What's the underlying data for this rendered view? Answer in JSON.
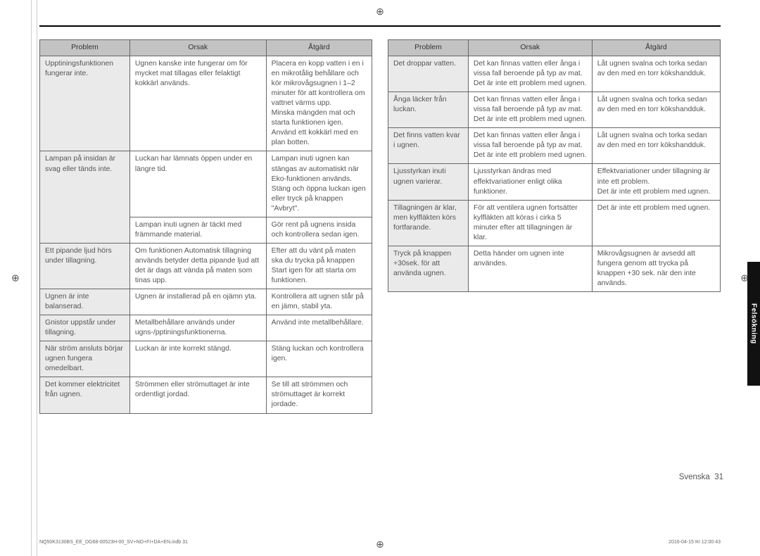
{
  "headers": {
    "col1": "Problem",
    "col2": "Orsak",
    "col3": "Åtgärd"
  },
  "sideTab": "Felsökning",
  "footer": {
    "lang": "Svenska",
    "pageNum": "31",
    "source": "NQ50K3130BS_EE_DG68-00523H-00_SV+NO+FI+DA+EN.indb   31",
    "date": "2016-04-15   ￼ 12:00:43"
  },
  "leftRows": [
    {
      "problem": "Upptiningsfunktionen fungerar inte.",
      "cause": "Ugnen kanske inte fungerar om för mycket mat tillagas eller felaktigt kokkärl används.",
      "action": "Placera en kopp vatten i en i en mikrotålig behållare och kör mikrovågsugnen i 1–2 minuter för att kontrollera om vattnet värms upp.\nMinska mängden mat och starta funktionen igen.\nAnvänd ett kokkärl med en plan botten.",
      "rowspan": 1
    },
    {
      "problem": "Lampan på insidan är svag eller tänds inte.",
      "cause": "Luckan har lämnats öppen under en längre tid.",
      "action": "Lampan inuti ugnen kan stängas av automatiskt när Eko-funktionen används.\nStäng och öppna luckan igen eller tryck på knappen \"Avbryt\".",
      "rowspan": 2
    },
    {
      "problem": "",
      "cause": "Lampan inuti ugnen är täckt med främmande material.",
      "action": "Gör rent på ugnens insida och kontrollera sedan igen."
    },
    {
      "problem": "Ett pipande ljud hörs under tillagning.",
      "cause": "Om funktionen Automatisk tillagning används betyder detta pipande ljud att det är dags att vända på maten som tinas upp.",
      "action": "Efter att du vänt på maten ska du trycka på knappen Start igen för att starta om funktionen.",
      "rowspan": 1
    },
    {
      "problem": "Ugnen är inte balanserad.",
      "cause": "Ugnen är installerad på en ojämn yta.",
      "action": "Kontrollera att ugnen står på en jämn, stabil yta.",
      "rowspan": 1
    },
    {
      "problem": "Gnistor uppstår under tillagning.",
      "cause": "Metallbehållare används under ugns-/pptiningsfunktionerna.",
      "action": "Använd inte metallbehållare.",
      "rowspan": 1
    },
    {
      "problem": "När ström ansluts börjar ugnen fungera omedelbart.",
      "cause": "Luckan är inte korrekt stängd.",
      "action": "Stäng luckan och kontrollera igen.",
      "rowspan": 1
    },
    {
      "problem": "Det kommer elektricitet från ugnen.",
      "cause": "Strömmen eller strömuttaget är inte ordentligt jordad.",
      "action": "Se till att strömmen och strömuttaget är korrekt jordade.",
      "rowspan": 1
    }
  ],
  "rightRows": [
    {
      "problem": "Det droppar vatten.",
      "cause": "Det kan finnas vatten eller ånga i vissa fall beroende på typ av mat.\nDet är inte ett problem med ugnen.",
      "action": "Låt ugnen svalna och torka sedan av den med en torr kökshandduk."
    },
    {
      "problem": "Ånga läcker från luckan.",
      "cause": "Det kan finnas vatten eller ånga i vissa fall beroende på typ av mat.\nDet är inte ett problem med ugnen.",
      "action": "Låt ugnen svalna och torka sedan av den med en torr kökshandduk."
    },
    {
      "problem": "Det finns vatten kvar i ugnen.",
      "cause": "Det kan finnas vatten eller ånga i vissa fall beroende på typ av mat.\nDet är inte ett problem med ugnen.",
      "action": "Låt ugnen svalna och torka sedan av den med en torr kökshandduk."
    },
    {
      "problem": "Ljusstyrkan inuti ugnen varierar.",
      "cause": "Ljusstyrkan ändras med effektvariationer enligt olika funktioner.",
      "action": "Effektvariationer under tillagning är inte ett problem.\nDet är inte ett problem med ugnen."
    },
    {
      "problem": "Tillagningen är klar, men kylfläkten körs fortfarande.",
      "cause": "För att ventilera ugnen fortsätter kylfläkten att köras i cirka 5 minuter efter att tillagningen är klar.",
      "action": "Det är inte ett problem med ugnen."
    },
    {
      "problem": "Tryck på knappen +30sek. för att använda ugnen.",
      "cause": "Detta händer om ugnen inte användes.",
      "action": "Mikrovågsugnen är avsedd att fungera genom att trycka på knappen +30 sek. när den inte används."
    }
  ]
}
